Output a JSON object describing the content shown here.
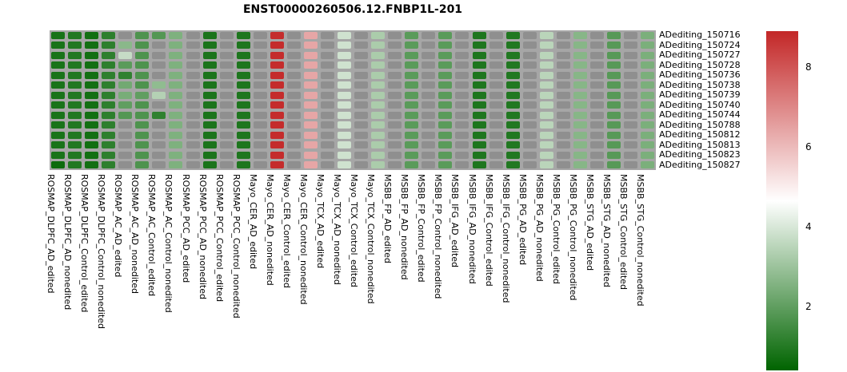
{
  "title": "ENST00000260506.12.FNBP1L-201",
  "chart_data": {
    "type": "heatmap",
    "title": "ENST00000260506.12.FNBP1L-201",
    "rows": [
      "ADediting_150716",
      "ADediting_150724",
      "ADediting_150727",
      "ADediting_150728",
      "ADediting_150736",
      "ADediting_150738",
      "ADediting_150739",
      "ADediting_150740",
      "ADediting_150744",
      "ADediting_150788",
      "ADediting_150812",
      "ADediting_150813",
      "ADediting_150823",
      "ADediting_150827"
    ],
    "columns": [
      "ROSMAP_DLPFC_AD_edited",
      "ROSMAP_DLPFC_AD_nonedited",
      "ROSMAP_DLPFC_Control_edited",
      "ROSMAP_DLPFC_Control_nonedited",
      "ROSMAP_AC_AD_edited",
      "ROSMAP_AC_AD_nonedited",
      "ROSMAP_AC_Control_edited",
      "ROSMAP_AC_Control_nonedited",
      "ROSMAP_PCC_AD_edited",
      "ROSMAP_PCC_AD_nonedited",
      "ROSMAP_PCC_Control_edited",
      "ROSMAP_PCC_Control_nonedited",
      "Mayo_CER_AD_edited",
      "Mayo_CER_AD_nonedited",
      "Mayo_CER_Control_edited",
      "Mayo_CER_Control_nonedited",
      "Mayo_TCX_AD_edited",
      "Mayo_TCX_AD_nonedited",
      "Mayo_TCX_Control_edited",
      "Mayo_TCX_Control_nonedited",
      "MSBB_FP_AD_edited",
      "MSBB_FP_AD_nonedited",
      "MSBB_FP_Control_edited",
      "MSBB_FP_Control_nonedited",
      "MSBB_IFG_AD_edited",
      "MSBB_IFG_AD_nonedited",
      "MSBB_IFG_Control_edited",
      "MSBB_IFG_Control_nonedited",
      "MSBB_PG_AD_edited",
      "MSBB_PG_AD_nonedited",
      "MSBB_PG_Control_edited",
      "MSBB_PG_Control_nonedited",
      "MSBB_STG_AD_edited",
      "MSBB_STG_AD_nonedited",
      "MSBB_STG_Control_edited",
      "MSBB_STG_Control_nonedited"
    ],
    "values": [
      [
        0.8,
        0.95,
        0.7,
        1.15,
        null,
        1.7,
        1.8,
        2.5,
        null,
        0.85,
        null,
        0.9,
        null,
        8.8,
        null,
        6.4,
        null,
        3.85,
        null,
        3.25,
        null,
        1.9,
        null,
        1.9,
        null,
        0.9,
        null,
        0.95,
        null,
        3.5,
        null,
        2.65,
        null,
        1.85,
        null,
        2.45
      ],
      [
        0.8,
        0.95,
        0.7,
        1.15,
        2.7,
        1.7,
        null,
        2.5,
        null,
        0.85,
        null,
        0.9,
        null,
        8.8,
        null,
        6.4,
        null,
        3.85,
        null,
        3.25,
        null,
        1.9,
        null,
        1.9,
        null,
        0.9,
        null,
        0.95,
        null,
        3.5,
        null,
        2.65,
        null,
        1.85,
        null,
        2.45
      ],
      [
        0.8,
        0.95,
        0.7,
        1.15,
        3.7,
        1.7,
        null,
        2.5,
        null,
        0.85,
        null,
        0.9,
        null,
        8.8,
        null,
        6.4,
        null,
        3.85,
        null,
        3.25,
        null,
        1.9,
        null,
        1.9,
        null,
        0.9,
        null,
        0.95,
        null,
        3.5,
        null,
        2.65,
        null,
        1.85,
        null,
        2.45
      ],
      [
        0.8,
        0.95,
        0.7,
        1.15,
        1.9,
        1.7,
        null,
        2.5,
        null,
        0.85,
        null,
        0.9,
        null,
        8.8,
        null,
        6.4,
        null,
        3.85,
        null,
        3.25,
        null,
        1.9,
        null,
        1.9,
        null,
        0.9,
        null,
        0.95,
        null,
        3.5,
        null,
        2.65,
        null,
        1.85,
        null,
        2.45
      ],
      [
        0.8,
        0.95,
        0.7,
        1.15,
        1.2,
        1.7,
        null,
        2.5,
        null,
        0.85,
        null,
        0.9,
        null,
        8.8,
        null,
        6.4,
        null,
        3.85,
        null,
        3.25,
        null,
        1.9,
        null,
        1.9,
        null,
        0.9,
        null,
        0.95,
        null,
        3.5,
        null,
        2.65,
        null,
        1.85,
        null,
        2.45
      ],
      [
        0.8,
        0.95,
        0.7,
        1.15,
        2.3,
        1.7,
        2.8,
        2.5,
        null,
        0.85,
        null,
        0.9,
        null,
        8.8,
        null,
        6.4,
        null,
        3.85,
        null,
        3.25,
        null,
        1.9,
        null,
        1.9,
        null,
        0.9,
        null,
        0.95,
        null,
        3.5,
        null,
        2.65,
        null,
        1.85,
        null,
        2.45
      ],
      [
        0.8,
        0.95,
        0.7,
        1.15,
        2.4,
        2.0,
        3.4,
        2.5,
        null,
        0.85,
        null,
        0.9,
        null,
        8.8,
        null,
        6.4,
        null,
        3.85,
        null,
        3.25,
        null,
        1.9,
        null,
        1.9,
        null,
        0.9,
        null,
        0.95,
        null,
        3.5,
        null,
        2.65,
        null,
        1.85,
        null,
        2.45
      ],
      [
        0.8,
        0.95,
        0.7,
        1.15,
        2.0,
        1.7,
        null,
        2.5,
        null,
        0.85,
        null,
        0.9,
        null,
        8.8,
        null,
        6.4,
        null,
        3.85,
        null,
        3.25,
        null,
        1.9,
        null,
        1.9,
        null,
        0.9,
        null,
        0.95,
        null,
        3.5,
        null,
        2.65,
        null,
        1.85,
        null,
        2.45
      ],
      [
        0.8,
        0.95,
        0.7,
        1.15,
        1.8,
        1.7,
        1.2,
        2.5,
        null,
        0.85,
        null,
        0.9,
        null,
        8.8,
        null,
        6.4,
        null,
        3.85,
        null,
        3.25,
        null,
        1.9,
        null,
        1.9,
        null,
        0.9,
        null,
        0.95,
        null,
        3.5,
        null,
        2.65,
        null,
        1.85,
        null,
        2.45
      ],
      [
        0.8,
        0.95,
        0.7,
        1.15,
        null,
        1.7,
        null,
        2.5,
        null,
        0.85,
        null,
        0.9,
        null,
        8.8,
        null,
        6.4,
        null,
        3.85,
        null,
        3.25,
        null,
        1.9,
        null,
        1.9,
        null,
        0.9,
        null,
        0.95,
        null,
        3.5,
        null,
        2.65,
        null,
        1.85,
        null,
        2.45
      ],
      [
        0.8,
        0.95,
        0.7,
        1.15,
        null,
        1.7,
        null,
        2.5,
        null,
        0.85,
        null,
        0.9,
        null,
        8.8,
        null,
        6.4,
        null,
        3.85,
        null,
        3.25,
        null,
        1.9,
        null,
        1.9,
        null,
        0.9,
        null,
        0.95,
        null,
        3.5,
        null,
        2.65,
        null,
        1.85,
        null,
        2.45
      ],
      [
        0.8,
        0.95,
        0.7,
        1.15,
        null,
        1.7,
        null,
        2.5,
        null,
        0.85,
        null,
        0.9,
        null,
        8.8,
        null,
        6.4,
        null,
        3.85,
        null,
        3.25,
        null,
        1.9,
        null,
        1.9,
        null,
        0.9,
        null,
        0.95,
        null,
        3.5,
        null,
        2.65,
        null,
        1.85,
        null,
        2.45
      ],
      [
        0.8,
        0.95,
        0.7,
        1.15,
        null,
        1.7,
        null,
        2.5,
        null,
        0.85,
        null,
        0.9,
        null,
        8.8,
        null,
        6.4,
        null,
        3.85,
        null,
        3.25,
        null,
        1.9,
        null,
        1.9,
        null,
        0.9,
        null,
        0.95,
        null,
        3.5,
        null,
        2.65,
        null,
        1.85,
        null,
        2.45
      ],
      [
        0.6,
        0.95,
        0.7,
        1.15,
        null,
        1.7,
        null,
        2.5,
        null,
        0.85,
        null,
        0.9,
        null,
        8.8,
        null,
        6.4,
        null,
        3.85,
        null,
        3.25,
        null,
        1.9,
        null,
        1.9,
        null,
        0.9,
        null,
        0.95,
        null,
        3.5,
        null,
        2.65,
        null,
        1.85,
        null,
        2.45
      ]
    ],
    "colorscale": {
      "min": 0.4,
      "mid": 4.65,
      "max": 8.9,
      "min_color": "#006400",
      "mid_color": "#ffffff",
      "max_color": "#c32727",
      "na_color": "#8f8f8f",
      "ticks": [
        2,
        4,
        6,
        8
      ],
      "legend_position": "right"
    },
    "panel_background": "#a6a6a6",
    "grid": false
  }
}
